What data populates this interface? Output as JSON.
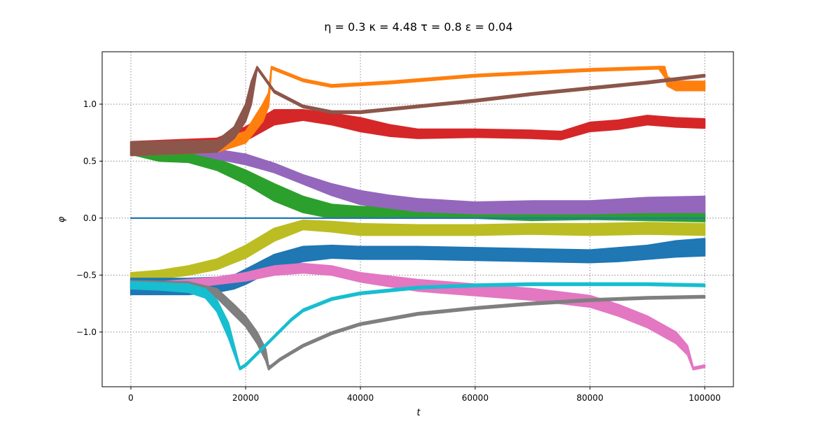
{
  "chart_data": {
    "type": "line",
    "title": "η = 0.3 κ = 4.48 τ = 0.8 ε = 0.04",
    "xlabel": "t",
    "ylabel": "φ",
    "xlim": [
      -5000,
      105000
    ],
    "ylim": [
      -1.48,
      1.46
    ],
    "xticks": [
      0,
      20000,
      40000,
      60000,
      80000,
      100000
    ],
    "xtick_labels": [
      "0",
      "20000",
      "40000",
      "60000",
      "80000",
      "100000"
    ],
    "yticks": [
      -1.0,
      -0.5,
      0.0,
      0.5,
      1.0
    ],
    "ytick_labels": [
      "−1.0",
      "−0.5",
      "0.0",
      "0.5",
      "1.0"
    ],
    "grid": true,
    "series": [
      {
        "color": "#1f77b4",
        "x": [
          0,
          100000
        ],
        "lower": [
          0,
          0
        ],
        "upper": [
          0,
          0
        ]
      },
      {
        "color": "#ff7f0e",
        "x": [
          0,
          15000,
          20000,
          23000,
          24000,
          24500,
          30000,
          35000,
          45000,
          60000,
          80000,
          92000,
          93000,
          93500,
          95000,
          100000
        ],
        "lower": [
          0.55,
          0.58,
          0.66,
          0.85,
          0.98,
          1.31,
          1.2,
          1.15,
          1.18,
          1.24,
          1.29,
          1.31,
          1.24,
          1.16,
          1.12,
          1.12
        ],
        "upper": [
          0.66,
          0.68,
          0.76,
          1.0,
          1.1,
          1.33,
          1.22,
          1.17,
          1.2,
          1.26,
          1.31,
          1.33,
          1.33,
          1.24,
          1.2,
          1.2
        ]
      },
      {
        "color": "#2ca02c",
        "x": [
          0,
          5000,
          10000,
          15000,
          20000,
          25000,
          30000,
          35000,
          40000,
          45000,
          50000,
          60000,
          70000,
          80000,
          90000,
          100000
        ],
        "lower": [
          0.56,
          0.5,
          0.49,
          0.42,
          0.3,
          0.15,
          0.05,
          0.0,
          0.0,
          0.0,
          0.0,
          0.0,
          -0.02,
          -0.01,
          -0.02,
          -0.03
        ],
        "upper": [
          0.6,
          0.58,
          0.57,
          0.52,
          0.42,
          0.3,
          0.19,
          0.12,
          0.1,
          0.1,
          0.1,
          0.08,
          0.06,
          0.06,
          0.06,
          0.05
        ]
      },
      {
        "color": "#d62728",
        "x": [
          0,
          15000,
          20000,
          25000,
          30000,
          35000,
          40000,
          45000,
          50000,
          60000,
          70000,
          75000,
          80000,
          85000,
          90000,
          95000,
          100000
        ],
        "lower": [
          0.6,
          0.62,
          0.68,
          0.82,
          0.86,
          0.82,
          0.76,
          0.72,
          0.7,
          0.71,
          0.7,
          0.69,
          0.76,
          0.78,
          0.82,
          0.8,
          0.79
        ],
        "upper": [
          0.67,
          0.7,
          0.8,
          0.95,
          0.95,
          0.92,
          0.88,
          0.82,
          0.78,
          0.78,
          0.77,
          0.76,
          0.84,
          0.86,
          0.9,
          0.88,
          0.87
        ]
      },
      {
        "color": "#9467bd",
        "x": [
          0,
          5000,
          10000,
          15000,
          20000,
          25000,
          30000,
          35000,
          40000,
          45000,
          50000,
          60000,
          70000,
          80000,
          90000,
          100000
        ],
        "lower": [
          0.55,
          0.58,
          0.58,
          0.52,
          0.47,
          0.4,
          0.3,
          0.2,
          0.12,
          0.09,
          0.06,
          0.04,
          0.04,
          0.04,
          0.05,
          0.05
        ],
        "upper": [
          0.63,
          0.64,
          0.64,
          0.6,
          0.56,
          0.48,
          0.38,
          0.3,
          0.24,
          0.2,
          0.17,
          0.14,
          0.15,
          0.15,
          0.18,
          0.19
        ]
      },
      {
        "color": "#8c564b",
        "x": [
          0,
          15000,
          18000,
          20000,
          21000,
          22000,
          25000,
          30000,
          35000,
          40000,
          50000,
          60000,
          70000,
          80000,
          90000,
          100000
        ],
        "lower": [
          0.55,
          0.58,
          0.7,
          0.85,
          1.0,
          1.31,
          1.1,
          0.97,
          0.92,
          0.92,
          0.97,
          1.02,
          1.08,
          1.13,
          1.18,
          1.24
        ],
        "upper": [
          0.67,
          0.68,
          0.8,
          1.0,
          1.2,
          1.33,
          1.12,
          0.99,
          0.94,
          0.94,
          0.99,
          1.04,
          1.1,
          1.15,
          1.2,
          1.26
        ]
      },
      {
        "color": "#e377c2",
        "x": [
          0,
          5000,
          10000,
          15000,
          20000,
          25000,
          30000,
          35000,
          40000,
          50000,
          60000,
          70000,
          80000,
          85000,
          90000,
          95000,
          97000,
          98000,
          100000
        ],
        "lower": [
          -0.62,
          -0.62,
          -0.61,
          -0.58,
          -0.55,
          -0.5,
          -0.48,
          -0.5,
          -0.56,
          -0.64,
          -0.68,
          -0.72,
          -0.78,
          -0.86,
          -0.96,
          -1.1,
          -1.2,
          -1.33,
          -1.31
        ],
        "upper": [
          -0.56,
          -0.56,
          -0.54,
          -0.52,
          -0.48,
          -0.42,
          -0.4,
          -0.42,
          -0.48,
          -0.54,
          -0.58,
          -0.62,
          -0.68,
          -0.76,
          -0.86,
          -1.0,
          -1.12,
          -1.31,
          -1.29
        ]
      },
      {
        "color": "#7f7f7f",
        "x": [
          0,
          10000,
          15000,
          18000,
          20000,
          22000,
          23500,
          24000,
          24500,
          26000,
          30000,
          35000,
          40000,
          50000,
          60000,
          70000,
          80000,
          90000,
          100000
        ],
        "lower": [
          -0.62,
          -0.62,
          -0.7,
          -0.85,
          -0.95,
          -1.1,
          -1.25,
          -1.33,
          -1.31,
          -1.25,
          -1.13,
          -1.02,
          -0.94,
          -0.85,
          -0.8,
          -0.76,
          -0.73,
          -0.71,
          -0.7
        ],
        "upper": [
          -0.55,
          -0.56,
          -0.62,
          -0.76,
          -0.86,
          -1.0,
          -1.15,
          -1.3,
          -1.29,
          -1.23,
          -1.11,
          -1.0,
          -0.92,
          -0.83,
          -0.78,
          -0.74,
          -0.71,
          -0.69,
          -0.68
        ]
      },
      {
        "color": "#bcbd22",
        "x": [
          0,
          5000,
          10000,
          15000,
          20000,
          25000,
          30000,
          35000,
          40000,
          50000,
          60000,
          70000,
          80000,
          90000,
          100000
        ],
        "lower": [
          -0.55,
          -0.53,
          -0.5,
          -0.45,
          -0.35,
          -0.2,
          -0.1,
          -0.12,
          -0.15,
          -0.15,
          -0.15,
          -0.14,
          -0.15,
          -0.14,
          -0.15
        ],
        "upper": [
          -0.48,
          -0.46,
          -0.42,
          -0.36,
          -0.24,
          -0.09,
          -0.02,
          -0.03,
          -0.05,
          -0.06,
          -0.06,
          -0.05,
          -0.05,
          -0.04,
          -0.05
        ]
      },
      {
        "color": "#17becf",
        "x": [
          0,
          5000,
          10000,
          13000,
          15000,
          17000,
          19000,
          20000,
          21000,
          23000,
          25000,
          28000,
          30000,
          35000,
          40000,
          50000,
          60000,
          70000,
          80000,
          90000,
          100000
        ],
        "lower": [
          -0.62,
          -0.63,
          -0.65,
          -0.7,
          -0.82,
          -1.05,
          -1.33,
          -1.3,
          -1.25,
          -1.15,
          -1.05,
          -0.9,
          -0.82,
          -0.72,
          -0.67,
          -0.62,
          -0.6,
          -0.59,
          -0.59,
          -0.59,
          -0.6
        ],
        "upper": [
          -0.56,
          -0.57,
          -0.58,
          -0.62,
          -0.72,
          -0.92,
          -1.31,
          -1.28,
          -1.23,
          -1.13,
          -1.03,
          -0.88,
          -0.8,
          -0.7,
          -0.65,
          -0.6,
          -0.58,
          -0.57,
          -0.57,
          -0.57,
          -0.58
        ]
      },
      {
        "color": "#1f77b4",
        "x": [
          0,
          5000,
          10000,
          15000,
          18000,
          20000,
          25000,
          30000,
          35000,
          40000,
          50000,
          60000,
          70000,
          80000,
          85000,
          90000,
          95000,
          100000
        ],
        "lower": [
          -0.67,
          -0.67,
          -0.67,
          -0.65,
          -0.62,
          -0.58,
          -0.45,
          -0.38,
          -0.35,
          -0.36,
          -0.36,
          -0.37,
          -0.38,
          -0.39,
          -0.38,
          -0.36,
          -0.34,
          -0.33
        ],
        "upper": [
          -0.53,
          -0.53,
          -0.53,
          -0.52,
          -0.5,
          -0.45,
          -0.32,
          -0.25,
          -0.24,
          -0.25,
          -0.25,
          -0.26,
          -0.27,
          -0.28,
          -0.26,
          -0.24,
          -0.2,
          -0.18
        ]
      }
    ]
  }
}
